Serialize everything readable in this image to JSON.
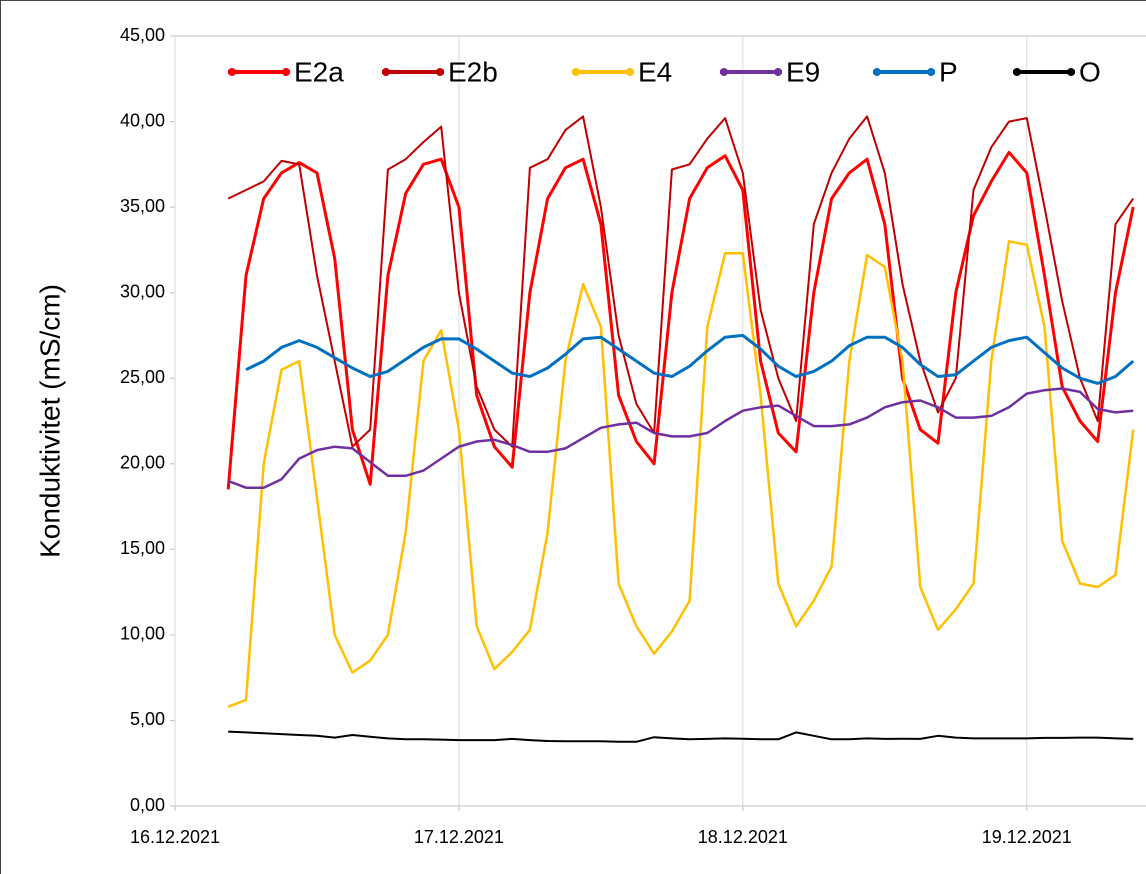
{
  "chart_data": {
    "type": "line",
    "y_label": "Konduktivitet (mS/cm)",
    "x": [
      0.1875,
      0.25,
      0.3125,
      0.375,
      0.4375,
      0.5,
      0.5625,
      0.625,
      0.6875,
      0.75,
      0.8125,
      0.875,
      0.9375,
      1,
      1.0625,
      1.125,
      1.1875,
      1.25,
      1.3125,
      1.375,
      1.4375,
      1.5,
      1.5625,
      1.625,
      1.6875,
      1.75,
      1.8125,
      1.875,
      1.9375,
      2,
      2.0625,
      2.125,
      2.1875,
      2.25,
      2.3125,
      2.375,
      2.4375,
      2.5,
      2.5625,
      2.625,
      2.6875,
      2.75,
      2.8125,
      2.875,
      2.9375,
      3,
      3.0625,
      3.125,
      3.1875,
      3.25,
      3.3125,
      3.375
    ],
    "xlim": [
      0,
      3.42
    ],
    "xticks": [
      {
        "value": 0,
        "label": "16.12.2021"
      },
      {
        "value": 1,
        "label": "17.12.2021"
      },
      {
        "value": 2,
        "label": "18.12.2021"
      },
      {
        "value": 3,
        "label": "19.12.2021"
      }
    ],
    "ylim": [
      0,
      45
    ],
    "yticks": [
      {
        "value": 0,
        "label": "0,00"
      },
      {
        "value": 5,
        "label": "5,00"
      },
      {
        "value": 10,
        "label": "10,00"
      },
      {
        "value": 15,
        "label": "15,00"
      },
      {
        "value": 20,
        "label": "20,00"
      },
      {
        "value": 25,
        "label": "25,00"
      },
      {
        "value": 30,
        "label": "30,00"
      },
      {
        "value": 35,
        "label": "35,00"
      },
      {
        "value": 40,
        "label": "40,00"
      },
      {
        "value": 45,
        "label": "45,00"
      }
    ],
    "grid": "x",
    "legend": "top",
    "series": [
      {
        "name": "E2a",
        "color": "#ff0000",
        "values": [
          18.5,
          31,
          35.5,
          37,
          37.6,
          37,
          32,
          22,
          18.8,
          31,
          35.8,
          37.5,
          37.8,
          35,
          24,
          21,
          19.8,
          30,
          35.5,
          37.3,
          37.8,
          34,
          24,
          21.3,
          20,
          30,
          35.5,
          37.3,
          38,
          36,
          26,
          21.8,
          20.7,
          30,
          35.5,
          37,
          37.8,
          34,
          25,
          22,
          21.2,
          30,
          34.5,
          36.5,
          38.2,
          37,
          31,
          24.5,
          22.5,
          21.3,
          30,
          35
        ]
      },
      {
        "name": "E2b",
        "color": "#c00000",
        "values": [
          35.5,
          36,
          36.5,
          37.7,
          37.5,
          31,
          26,
          21,
          22,
          37.2,
          37.8,
          38.8,
          39.7,
          30,
          24.5,
          22,
          21,
          37.3,
          37.8,
          39.5,
          40.3,
          35,
          27.5,
          23.5,
          21.8,
          37.2,
          37.5,
          39,
          40.2,
          37,
          29,
          25,
          22.5,
          34,
          37,
          39,
          40.3,
          37,
          30.5,
          26,
          23,
          25,
          36,
          38.5,
          40,
          40.2,
          35,
          29.5,
          25,
          22.5,
          34,
          35.5
        ]
      },
      {
        "name": "E4",
        "color": "#ffc000",
        "values": [
          5.8,
          6.2,
          20,
          25.5,
          26,
          18,
          10,
          7.8,
          8.5,
          10,
          16,
          26,
          27.8,
          22,
          10.5,
          8,
          9,
          10.3,
          16,
          26,
          30.5,
          28,
          13,
          10.5,
          8.9,
          10.2,
          12,
          28,
          32.3,
          32.3,
          24,
          13,
          10.5,
          12,
          14,
          26,
          32.2,
          31.5,
          26,
          12.8,
          10.3,
          11.5,
          13,
          26,
          33,
          32.8,
          28,
          15.5,
          13,
          12.8,
          13.5,
          22
        ]
      },
      {
        "name": "E9",
        "color": "#7030a0",
        "values": [
          19,
          18.6,
          18.6,
          19.1,
          20.3,
          20.8,
          21,
          20.9,
          20.1,
          19.3,
          19.3,
          19.6,
          20.3,
          21,
          21.3,
          21.4,
          21.1,
          20.7,
          20.7,
          20.9,
          21.5,
          22.1,
          22.3,
          22.4,
          21.8,
          21.6,
          21.6,
          21.8,
          22.5,
          23.1,
          23.3,
          23.4,
          22.8,
          22.2,
          22.2,
          22.3,
          22.7,
          23.3,
          23.6,
          23.7,
          23.3,
          22.7,
          22.7,
          22.8,
          23.3,
          24.1,
          24.3,
          24.4,
          24.2,
          23.2,
          23,
          23.1
        ]
      },
      {
        "name": "P",
        "color": "#0070c0",
        "values": [
          null,
          25.5,
          26,
          26.8,
          27.2,
          26.8,
          26.2,
          25.6,
          25.1,
          25.4,
          26.1,
          26.8,
          27.3,
          27.3,
          26.7,
          26,
          25.3,
          25.1,
          25.6,
          26.4,
          27.3,
          27.4,
          26.7,
          26,
          25.3,
          25.1,
          25.7,
          26.6,
          27.4,
          27.5,
          26.7,
          25.7,
          25.1,
          25.4,
          26,
          26.9,
          27.4,
          27.4,
          26.8,
          25.8,
          25.1,
          25.2,
          26,
          26.8,
          27.2,
          27.4,
          26.5,
          25.6,
          25,
          24.7,
          25.1,
          26
        ]
      },
      {
        "name": "O",
        "color": "#000000",
        "values": [
          4.35,
          4.3,
          4.25,
          4.2,
          4.15,
          4.1,
          4.0,
          4.15,
          4.05,
          3.95,
          3.9,
          3.9,
          3.88,
          3.85,
          3.85,
          3.85,
          3.92,
          3.85,
          3.8,
          3.78,
          3.78,
          3.78,
          3.75,
          3.75,
          4.02,
          3.95,
          3.9,
          3.92,
          3.95,
          3.93,
          3.9,
          3.9,
          4.3,
          4.1,
          3.9,
          3.9,
          3.95,
          3.92,
          3.93,
          3.92,
          4.1,
          4.0,
          3.95,
          3.95,
          3.95,
          3.95,
          3.98,
          3.98,
          4.0,
          4.0,
          3.95,
          3.92
        ]
      }
    ]
  }
}
